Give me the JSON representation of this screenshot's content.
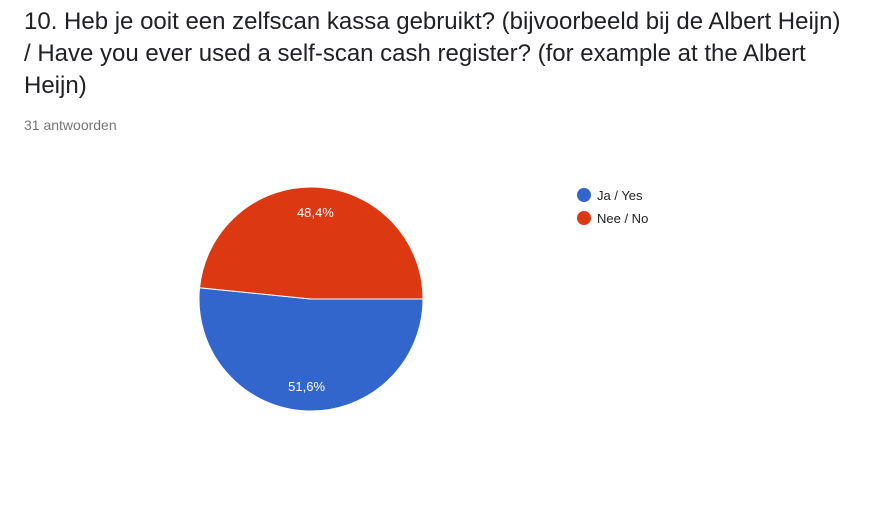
{
  "question": {
    "title": "10. Heb je ooit een zelfscan kassa gebruikt? (bijvoorbeeld bij de Albert Heijn) / Have you ever used a self-scan cash register? (for example at the Albert Heijn)",
    "response_count": "31 antwoorden"
  },
  "chart_data": {
    "type": "pie",
    "title": "",
    "legend_position": "right",
    "slices": [
      {
        "name": "Ja / Yes",
        "value": 51.6,
        "label": "51,6%",
        "color": "#3366cc"
      },
      {
        "name": "Nee / No",
        "value": 48.4,
        "label": "48,4%",
        "color": "#dc3912"
      }
    ]
  }
}
